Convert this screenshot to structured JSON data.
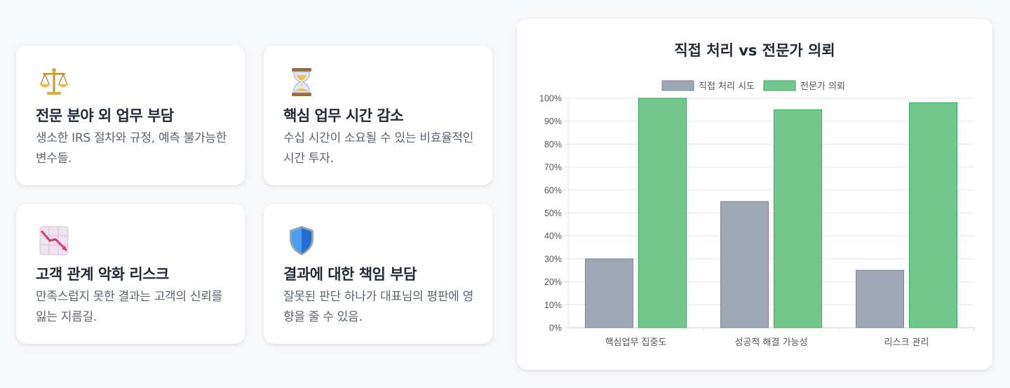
{
  "features": [
    {
      "icon": "scales-icon",
      "title": "전문 분야 외 업무 부담",
      "desc": "생소한 IRS 절차와 규정, 예측 불가능한 변수들."
    },
    {
      "icon": "hourglass-icon",
      "title": "핵심 업무 시간 감소",
      "desc": "수십 시간이 소요될 수 있는 비효율적인 시간 투자."
    },
    {
      "icon": "declining-chart-icon",
      "title": "고객 관계 악화 리스크",
      "desc": "만족스럽지 못한 결과는 고객의 신뢰를 잃는 지름길."
    },
    {
      "icon": "shield-icon",
      "title": "결과에 대한 책임 부담",
      "desc": "잘못된 판단 하나가 대표님의 평판에 영향을 줄 수 있음."
    }
  ],
  "chart_data": {
    "type": "bar",
    "title": "직접 처리 vs 전문가 의뢰",
    "categories": [
      "핵심업무 집중도",
      "성공적 해결 가능성",
      "리스크 관리"
    ],
    "series": [
      {
        "name": "직접 처리 시도",
        "values": [
          30,
          55,
          25
        ],
        "color": "#a0a8b6",
        "border": "#7b8494"
      },
      {
        "name": "전문가 의뢰",
        "values": [
          100,
          95,
          98
        ],
        "color": "#72c78c",
        "border": "#3aa85a"
      }
    ],
    "ylim": [
      0,
      100
    ],
    "yticks": [
      "0%",
      "10%",
      "20%",
      "30%",
      "40%",
      "50%",
      "60%",
      "70%",
      "80%",
      "90%",
      "100%"
    ],
    "legend": "top",
    "grid": true
  }
}
